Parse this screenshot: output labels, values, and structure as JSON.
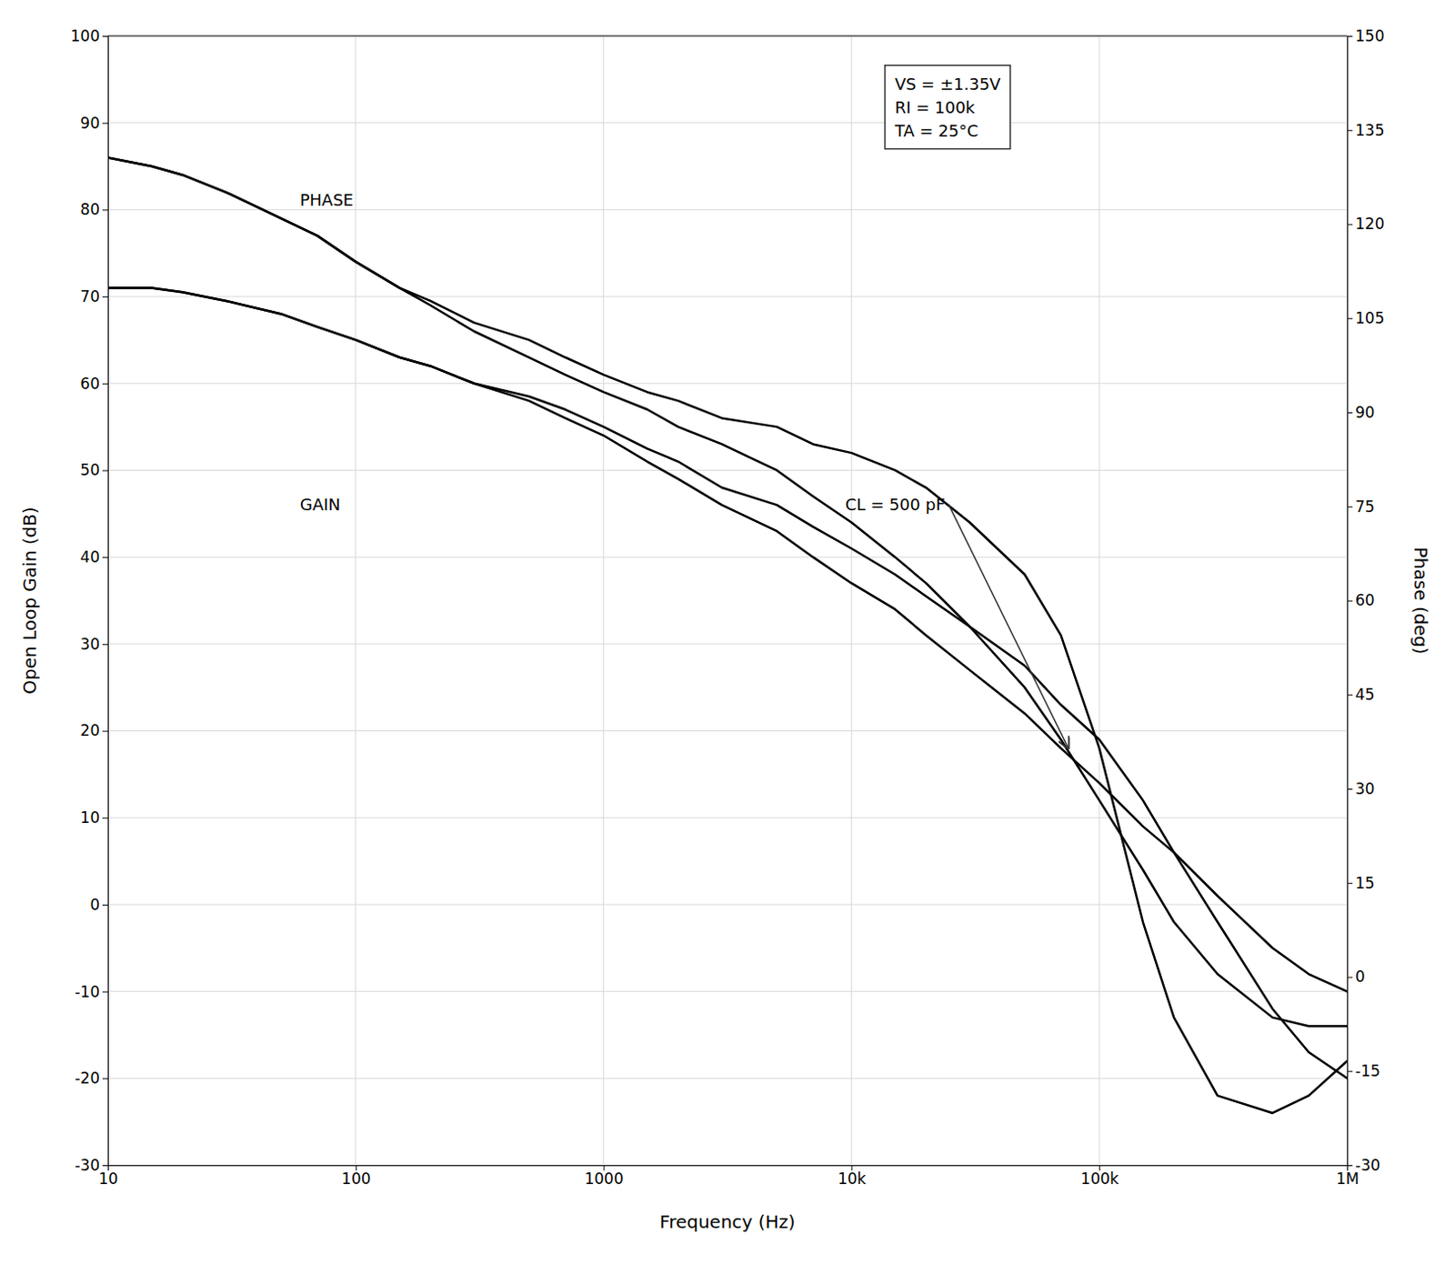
{
  "chart_data": {
    "type": "line",
    "log": "x",
    "grid": true,
    "x_label": "Frequency (Hz)",
    "y_label": "Open Loop Gain (dB)",
    "y2_label": "Phase (deg)",
    "xlim": [
      10,
      1000000
    ],
    "xticks": [
      10,
      100,
      1000,
      {
        "value": 10000,
        "label": "10k"
      },
      {
        "value": 100000,
        "label": "100k"
      },
      {
        "value": 1000000,
        "label": "1M"
      }
    ],
    "ylim": [
      -30,
      100
    ],
    "yticks": [
      -30,
      -20,
      -10,
      0,
      10,
      20,
      30,
      40,
      50,
      60,
      70,
      80,
      90,
      100
    ],
    "y2lim": [
      -30,
      150
    ],
    "y2ticks": [
      -30,
      -15,
      0,
      15,
      30,
      45,
      60,
      75,
      90,
      105,
      120,
      135,
      150
    ],
    "x": [
      10,
      15,
      20,
      30,
      50,
      70,
      100,
      150,
      200,
      300,
      500,
      700,
      1000,
      1500,
      2000,
      3000,
      5000,
      7000,
      10000,
      15000,
      20000,
      30000,
      50000,
      70000,
      100000,
      150000,
      200000,
      300000,
      500000,
      700000,
      1000000
    ],
    "series": [
      {
        "color": "#000000",
        "values": [
          71,
          71,
          70.5,
          69.5,
          68,
          66.5,
          65,
          63,
          62,
          60,
          58,
          56,
          54,
          51,
          49,
          46,
          43,
          40,
          37,
          34,
          31,
          27,
          22,
          18,
          14,
          9,
          6,
          1,
          -5,
          -8,
          -10
        ]
      },
      {
        "color": "#000000",
        "values": [
          71,
          71,
          70.5,
          69.5,
          68,
          66.5,
          65,
          63,
          62,
          60,
          58.5,
          57,
          55,
          52.5,
          51,
          48,
          46,
          43.5,
          41,
          38,
          35.5,
          32,
          27.5,
          23,
          19,
          12,
          6,
          -2,
          -12,
          -17,
          -20
        ]
      },
      {
        "color": "#000000",
        "values": [
          86,
          85,
          84,
          82,
          79,
          77,
          74,
          71,
          69,
          66,
          63,
          61,
          59,
          57,
          55,
          53,
          50,
          47,
          44,
          40,
          37,
          32,
          25,
          19,
          12,
          4,
          -2,
          -8,
          -13,
          -14,
          -14
        ]
      },
      {
        "color": "#000000",
        "values": [
          86,
          85,
          84,
          82,
          79,
          77,
          74,
          71,
          69.5,
          67,
          65,
          63,
          61,
          59,
          58,
          56,
          55,
          53,
          52,
          50,
          48,
          44,
          38,
          31,
          18,
          -2,
          -13,
          -22,
          -24,
          -22,
          -18
        ]
      }
    ],
    "annotations": [
      {
        "text": "CL = 500 pF",
        "x": 75000,
        "y": 18
      },
      {
        "text": "PHASE"
      },
      {
        "text": "GAIN"
      },
      {
        "text": [
          "VS = ±1.35V",
          "RI = 100k",
          "TA = 25°C"
        ]
      }
    ]
  }
}
